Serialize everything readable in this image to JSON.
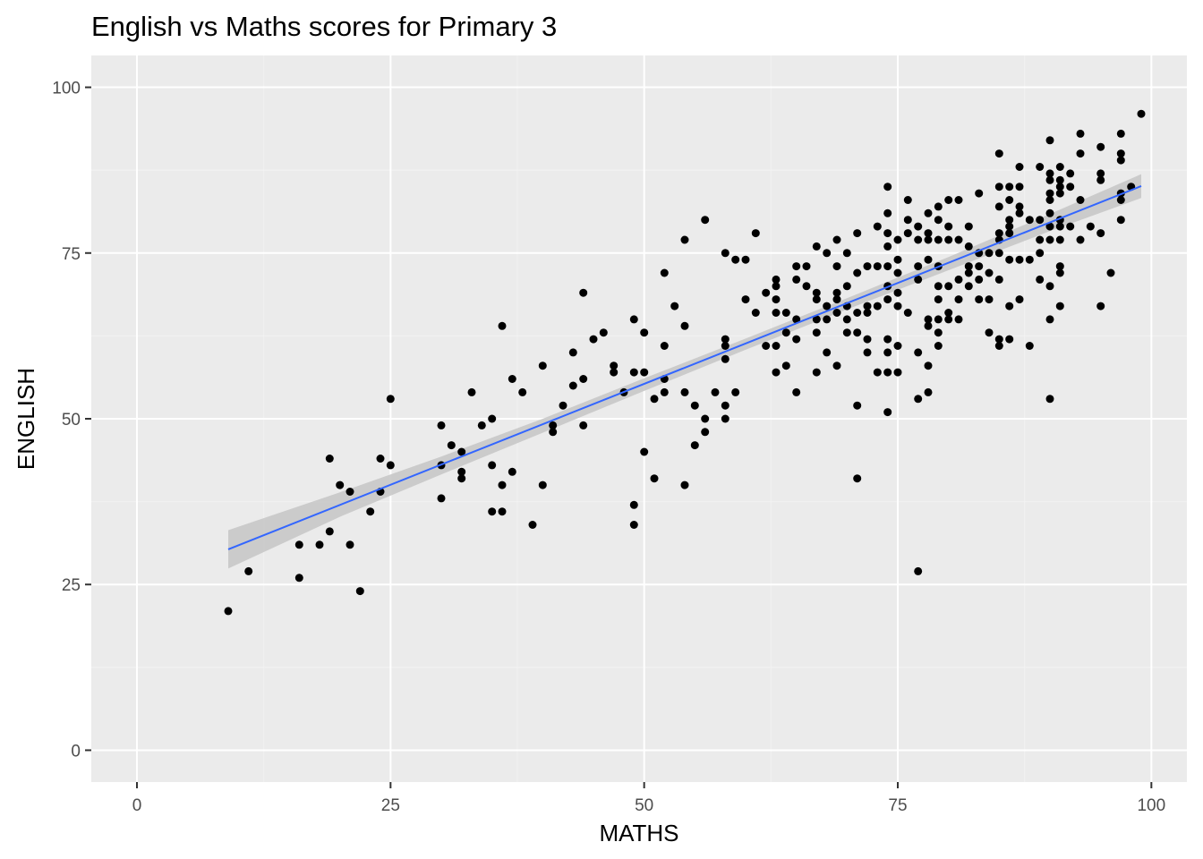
{
  "chart_data": {
    "type": "scatter",
    "title": "English vs Maths scores for Primary 3",
    "xlabel": "MATHS",
    "ylabel": "ENGLISH",
    "xlim": [
      -4.5,
      103.5
    ],
    "ylim": [
      -4.8,
      104.8
    ],
    "x_ticks": [
      0,
      25,
      50,
      75,
      100
    ],
    "y_ticks": [
      0,
      25,
      50,
      75,
      100
    ],
    "x_tick_labels": [
      "0",
      "25",
      "50",
      "75",
      "100"
    ],
    "y_tick_labels": [
      "0",
      "25",
      "50",
      "75",
      "100"
    ],
    "grid": true,
    "legend": "none",
    "points": [
      [
        9,
        21
      ],
      [
        11,
        27
      ],
      [
        16,
        31
      ],
      [
        16,
        26
      ],
      [
        18,
        31
      ],
      [
        19,
        44
      ],
      [
        19,
        33
      ],
      [
        20,
        40
      ],
      [
        21,
        39
      ],
      [
        21,
        31
      ],
      [
        22,
        24
      ],
      [
        23,
        36
      ],
      [
        24,
        44
      ],
      [
        24,
        39
      ],
      [
        25,
        53
      ],
      [
        25,
        43
      ],
      [
        30,
        49
      ],
      [
        30,
        43
      ],
      [
        30,
        38
      ],
      [
        31,
        46
      ],
      [
        32,
        45
      ],
      [
        32,
        42
      ],
      [
        32,
        41
      ],
      [
        33,
        54
      ],
      [
        34,
        49
      ],
      [
        35,
        50
      ],
      [
        35,
        43
      ],
      [
        35,
        36
      ],
      [
        36,
        64
      ],
      [
        36,
        40
      ],
      [
        36,
        36
      ],
      [
        37,
        56
      ],
      [
        37,
        42
      ],
      [
        38,
        54
      ],
      [
        39,
        34
      ],
      [
        40,
        58
      ],
      [
        40,
        40
      ],
      [
        41,
        49
      ],
      [
        41,
        48
      ],
      [
        42,
        52
      ],
      [
        43,
        60
      ],
      [
        43,
        55
      ],
      [
        44,
        69
      ],
      [
        44,
        56
      ],
      [
        44,
        49
      ],
      [
        45,
        62
      ],
      [
        46,
        63
      ],
      [
        47,
        58
      ],
      [
        47,
        57
      ],
      [
        48,
        54
      ],
      [
        49,
        65
      ],
      [
        49,
        57
      ],
      [
        49,
        37
      ],
      [
        49,
        34
      ],
      [
        50,
        63
      ],
      [
        50,
        57
      ],
      [
        50,
        45
      ],
      [
        51,
        53
      ],
      [
        51,
        41
      ],
      [
        52,
        72
      ],
      [
        52,
        61
      ],
      [
        52,
        56
      ],
      [
        52,
        54
      ],
      [
        53,
        67
      ],
      [
        54,
        77
      ],
      [
        54,
        64
      ],
      [
        54,
        54
      ],
      [
        54,
        40
      ],
      [
        55,
        52
      ],
      [
        55,
        46
      ],
      [
        56,
        80
      ],
      [
        56,
        50
      ],
      [
        56,
        48
      ],
      [
        57,
        54
      ],
      [
        58,
        75
      ],
      [
        58,
        62
      ],
      [
        58,
        61
      ],
      [
        58,
        59
      ],
      [
        58,
        52
      ],
      [
        58,
        50
      ],
      [
        59,
        74
      ],
      [
        59,
        54
      ],
      [
        60,
        74
      ],
      [
        60,
        68
      ],
      [
        61,
        78
      ],
      [
        61,
        66
      ],
      [
        62,
        69
      ],
      [
        62,
        61
      ],
      [
        63,
        71
      ],
      [
        63,
        70
      ],
      [
        63,
        68
      ],
      [
        63,
        66
      ],
      [
        63,
        61
      ],
      [
        63,
        57
      ],
      [
        64,
        66
      ],
      [
        64,
        63
      ],
      [
        64,
        58
      ],
      [
        65,
        73
      ],
      [
        65,
        71
      ],
      [
        65,
        65
      ],
      [
        65,
        62
      ],
      [
        65,
        54
      ],
      [
        66,
        73
      ],
      [
        66,
        70
      ],
      [
        67,
        76
      ],
      [
        67,
        69
      ],
      [
        67,
        68
      ],
      [
        67,
        65
      ],
      [
        67,
        63
      ],
      [
        67,
        57
      ],
      [
        68,
        75
      ],
      [
        68,
        67
      ],
      [
        68,
        65
      ],
      [
        68,
        60
      ],
      [
        69,
        77
      ],
      [
        69,
        73
      ],
      [
        69,
        69
      ],
      [
        69,
        68
      ],
      [
        69,
        66
      ],
      [
        69,
        58
      ],
      [
        70,
        75
      ],
      [
        70,
        70
      ],
      [
        70,
        67
      ],
      [
        70,
        65
      ],
      [
        70,
        63
      ],
      [
        71,
        78
      ],
      [
        71,
        72
      ],
      [
        71,
        66
      ],
      [
        71,
        63
      ],
      [
        71,
        52
      ],
      [
        71,
        41
      ],
      [
        72,
        73
      ],
      [
        72,
        67
      ],
      [
        72,
        66
      ],
      [
        72,
        62
      ],
      [
        72,
        60
      ],
      [
        73,
        79
      ],
      [
        73,
        73
      ],
      [
        73,
        67
      ],
      [
        73,
        57
      ],
      [
        74,
        85
      ],
      [
        74,
        81
      ],
      [
        74,
        78
      ],
      [
        74,
        76
      ],
      [
        74,
        73
      ],
      [
        74,
        70
      ],
      [
        74,
        68
      ],
      [
        74,
        62
      ],
      [
        74,
        60
      ],
      [
        74,
        57
      ],
      [
        74,
        51
      ],
      [
        75,
        77
      ],
      [
        75,
        74
      ],
      [
        75,
        72
      ],
      [
        75,
        69
      ],
      [
        75,
        67
      ],
      [
        75,
        61
      ],
      [
        75,
        57
      ],
      [
        76,
        83
      ],
      [
        76,
        80
      ],
      [
        76,
        78
      ],
      [
        76,
        66
      ],
      [
        77,
        79
      ],
      [
        77,
        77
      ],
      [
        77,
        73
      ],
      [
        77,
        71
      ],
      [
        77,
        60
      ],
      [
        77,
        53
      ],
      [
        77,
        27
      ],
      [
        78,
        81
      ],
      [
        78,
        78
      ],
      [
        78,
        77
      ],
      [
        78,
        74
      ],
      [
        78,
        65
      ],
      [
        78,
        64
      ],
      [
        78,
        58
      ],
      [
        78,
        54
      ],
      [
        79,
        82
      ],
      [
        79,
        80
      ],
      [
        79,
        77
      ],
      [
        79,
        73
      ],
      [
        79,
        70
      ],
      [
        79,
        68
      ],
      [
        79,
        65
      ],
      [
        79,
        63
      ],
      [
        79,
        61
      ],
      [
        80,
        83
      ],
      [
        80,
        79
      ],
      [
        80,
        77
      ],
      [
        80,
        70
      ],
      [
        80,
        66
      ],
      [
        80,
        65
      ],
      [
        81,
        83
      ],
      [
        81,
        77
      ],
      [
        81,
        71
      ],
      [
        81,
        68
      ],
      [
        81,
        65
      ],
      [
        82,
        79
      ],
      [
        82,
        76
      ],
      [
        82,
        73
      ],
      [
        82,
        72
      ],
      [
        82,
        70
      ],
      [
        83,
        84
      ],
      [
        83,
        75
      ],
      [
        83,
        73
      ],
      [
        83,
        71
      ],
      [
        83,
        68
      ],
      [
        84,
        75
      ],
      [
        84,
        72
      ],
      [
        84,
        68
      ],
      [
        84,
        63
      ],
      [
        85,
        90
      ],
      [
        85,
        85
      ],
      [
        85,
        82
      ],
      [
        85,
        78
      ],
      [
        85,
        77
      ],
      [
        85,
        75
      ],
      [
        85,
        71
      ],
      [
        85,
        62
      ],
      [
        85,
        61
      ],
      [
        86,
        85
      ],
      [
        86,
        83
      ],
      [
        86,
        80
      ],
      [
        86,
        79
      ],
      [
        86,
        78
      ],
      [
        86,
        74
      ],
      [
        86,
        67
      ],
      [
        86,
        62
      ],
      [
        87,
        88
      ],
      [
        87,
        85
      ],
      [
        87,
        82
      ],
      [
        87,
        81
      ],
      [
        87,
        74
      ],
      [
        87,
        68
      ],
      [
        88,
        80
      ],
      [
        88,
        74
      ],
      [
        88,
        61
      ],
      [
        89,
        88
      ],
      [
        89,
        80
      ],
      [
        89,
        77
      ],
      [
        89,
        75
      ],
      [
        89,
        71
      ],
      [
        90,
        92
      ],
      [
        90,
        87
      ],
      [
        90,
        86
      ],
      [
        90,
        84
      ],
      [
        90,
        83
      ],
      [
        90,
        81
      ],
      [
        90,
        79
      ],
      [
        90,
        77
      ],
      [
        90,
        70
      ],
      [
        90,
        65
      ],
      [
        90,
        53
      ],
      [
        91,
        88
      ],
      [
        91,
        86
      ],
      [
        91,
        85
      ],
      [
        91,
        84
      ],
      [
        91,
        80
      ],
      [
        91,
        79
      ],
      [
        91,
        77
      ],
      [
        91,
        73
      ],
      [
        91,
        72
      ],
      [
        91,
        67
      ],
      [
        92,
        87
      ],
      [
        92,
        85
      ],
      [
        92,
        79
      ],
      [
        93,
        93
      ],
      [
        93,
        90
      ],
      [
        93,
        83
      ],
      [
        93,
        77
      ],
      [
        94,
        79
      ],
      [
        95,
        91
      ],
      [
        95,
        87
      ],
      [
        95,
        86
      ],
      [
        95,
        78
      ],
      [
        95,
        67
      ],
      [
        96,
        72
      ],
      [
        97,
        93
      ],
      [
        97,
        90
      ],
      [
        97,
        89
      ],
      [
        97,
        84
      ],
      [
        97,
        83
      ],
      [
        97,
        80
      ],
      [
        98,
        85
      ],
      [
        99,
        96
      ]
    ],
    "smooth": {
      "method": "lm",
      "x": [
        9,
        99
      ],
      "y": [
        30.3,
        85.1
      ],
      "se_x": [
        9,
        20,
        30,
        40,
        50,
        60,
        70,
        80,
        90,
        99
      ],
      "se_low": [
        27.4,
        35.2,
        41.6,
        47.9,
        54.2,
        60.4,
        66.5,
        72.4,
        78.3,
        83.3
      ],
      "se_high": [
        33.2,
        38.9,
        44.3,
        50.0,
        56.1,
        62.1,
        68.2,
        74.4,
        80.9,
        86.9
      ]
    },
    "colors": {
      "panel_background": "#ebebeb",
      "grid_major": "#ffffff",
      "grid_minor": "#f2f2f2",
      "points": "#000000",
      "line": "#3366ff",
      "ribbon": "#c8c8c8"
    }
  }
}
